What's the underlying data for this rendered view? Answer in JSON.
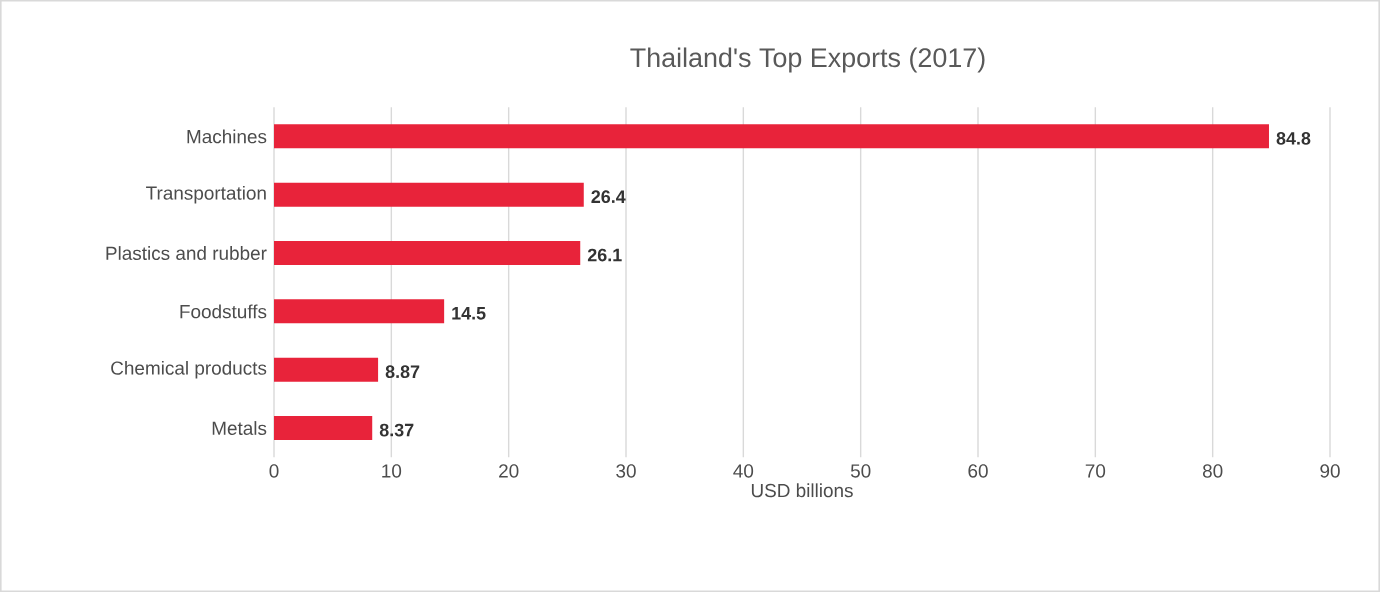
{
  "chart_data": {
    "type": "bar",
    "orientation": "horizontal",
    "title": "Thailand's Top Exports (2017)",
    "xlabel": "USD billions",
    "categories": [
      "Machines",
      "Transportation",
      "Plastics and rubber",
      "Foodstuffs",
      "Chemical products",
      "Metals"
    ],
    "values": [
      84.8,
      26.4,
      26.1,
      14.5,
      8.87,
      8.37
    ],
    "color": "#e8233a",
    "xlim": [
      0,
      90
    ],
    "xticks": [
      0,
      10,
      20,
      30,
      40,
      50,
      60,
      70,
      80,
      90
    ],
    "grid": "x",
    "data_labels": true
  }
}
